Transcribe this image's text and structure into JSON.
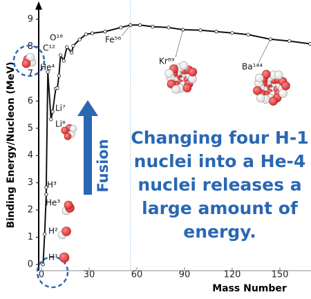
{
  "chart_data": {
    "type": "line",
    "x_label": "Mass Number",
    "y_label": "Binding Energy/Nucleon (MeV)",
    "xlim": [
      0,
      169
    ],
    "ylim": [
      0,
      9
    ],
    "xticks": [
      0,
      30,
      60,
      90,
      120,
      150
    ],
    "yticks": [
      0,
      1,
      2,
      3,
      4,
      5,
      6,
      7,
      8,
      9
    ],
    "vline": 56,
    "series": [
      {
        "color": "#111111",
        "x": [
          1,
          2,
          3,
          3,
          4,
          6,
          7,
          9,
          10,
          11,
          12,
          14,
          16,
          19,
          20,
          24,
          28,
          32,
          40,
          50,
          56,
          62,
          70,
          80,
          89,
          100,
          110,
          120,
          130,
          144,
          156,
          169
        ],
        "values": [
          0,
          1.11,
          2.57,
          2.83,
          7.07,
          5.33,
          5.61,
          6.46,
          6.48,
          6.93,
          7.68,
          7.48,
          7.98,
          7.78,
          8.03,
          8.26,
          8.45,
          8.49,
          8.55,
          8.7,
          8.79,
          8.79,
          8.73,
          8.7,
          8.62,
          8.6,
          8.55,
          8.5,
          8.44,
          8.27,
          8.2,
          8.1
        ],
        "point_labels": [
          "H¹",
          "H²",
          "He³",
          "H³",
          "He⁴",
          "Li⁶",
          "Li⁷",
          null,
          null,
          null,
          "C¹²",
          null,
          "O¹⁶",
          null,
          null,
          null,
          null,
          null,
          null,
          null,
          "Fe⁵⁶",
          null,
          null,
          null,
          "Kr⁸⁹",
          null,
          null,
          null,
          null,
          "Ba¹⁴⁴",
          null,
          null
        ]
      }
    ],
    "arrow_label": "Fusion",
    "annotation": [
      "Changing four H-1",
      "nuclei into a He-4",
      "nuclei releases a",
      "large amount of",
      "energy."
    ]
  }
}
